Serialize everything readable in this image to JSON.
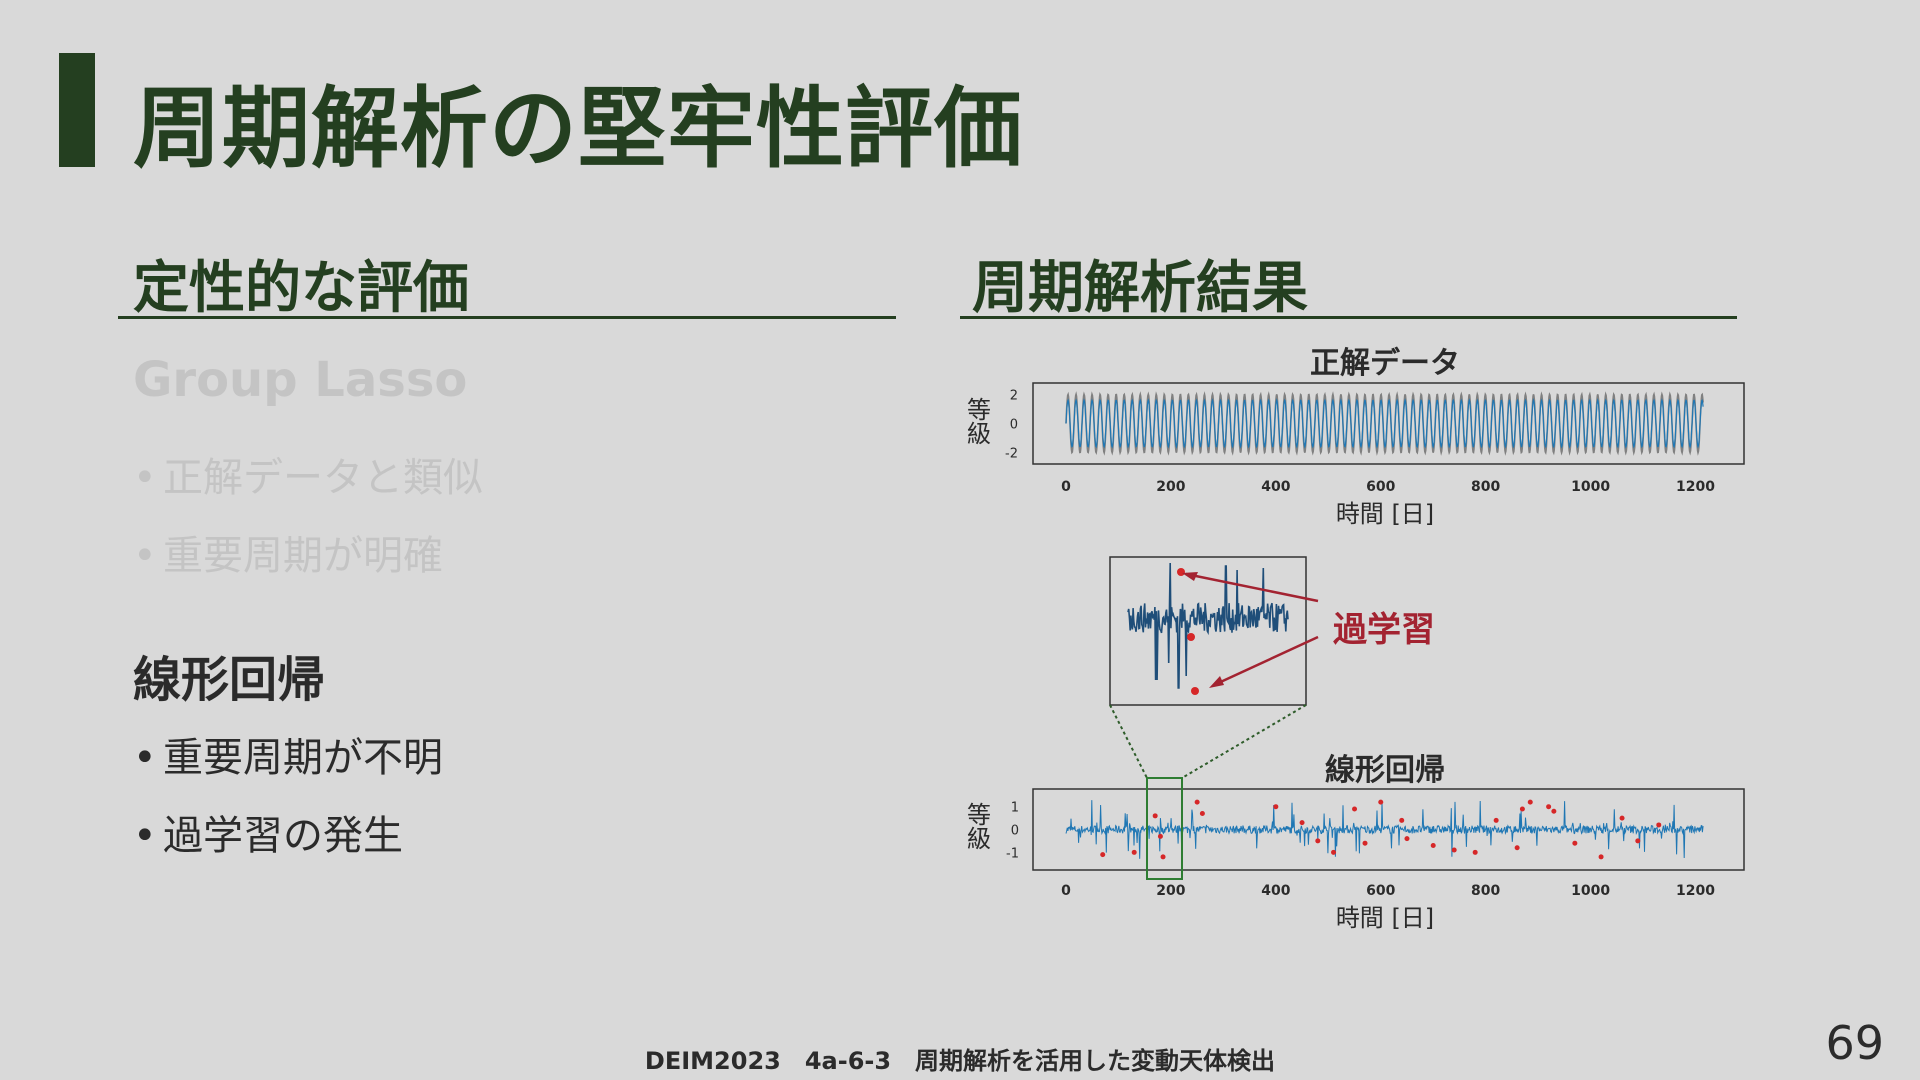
{
  "slide": {
    "title": "周期解析の堅牢性評価",
    "page_number": "69",
    "footer": "DEIM2023　4a-6-3　周期解析を活用した変動天体検出"
  },
  "left": {
    "heading": "定性的な評価",
    "groups": [
      {
        "title": "Group Lasso",
        "bullets": [
          "正解データと類似",
          "重要周期が明確"
        ],
        "faded": true
      },
      {
        "title": "線形回帰",
        "bullets": [
          "重要周期が不明",
          "過学習の発生"
        ],
        "faded": false
      }
    ]
  },
  "right": {
    "heading": "周期解析結果",
    "annotation": "過学習",
    "charts": [
      {
        "type": "line",
        "title": "正解データ",
        "ylabel": "等級",
        "xlabel": "時間 [日]",
        "x_ticks": [
          "0",
          "200",
          "400",
          "600",
          "800",
          "1000",
          "1200"
        ],
        "y_ticks": [
          "2",
          "0",
          "-2"
        ],
        "xlim": [
          0,
          1220
        ],
        "ylim": [
          -2.5,
          2.5
        ],
        "series": [
          {
            "color": "#808080",
            "amplitude": 2.0,
            "period_days": 15.3
          },
          {
            "color": "#1f77b4",
            "amplitude": 1.6,
            "period_days": 15.3
          }
        ]
      },
      {
        "type": "line",
        "title": "線形回帰",
        "ylabel": "等級",
        "xlabel": "時間 [日]",
        "x_ticks": [
          "0",
          "200",
          "400",
          "600",
          "800",
          "1000",
          "1200"
        ],
        "y_ticks": [
          "1",
          "0",
          "-1"
        ],
        "xlim": [
          0,
          1220
        ],
        "ylim": [
          -1.6,
          1.6
        ],
        "series": [
          {
            "color": "#1f77b4"
          }
        ],
        "overfit_points": {
          "color": "#d62728",
          "points": [
            [
              70,
              -1.1
            ],
            [
              130,
              -1.0
            ],
            [
              170,
              0.6
            ],
            [
              180,
              -0.3
            ],
            [
              185,
              -1.2
            ],
            [
              250,
              1.2
            ],
            [
              260,
              0.7
            ],
            [
              400,
              1.0
            ],
            [
              450,
              0.3
            ],
            [
              480,
              -0.5
            ],
            [
              510,
              -1.0
            ],
            [
              550,
              0.9
            ],
            [
              570,
              -0.6
            ],
            [
              600,
              1.2
            ],
            [
              640,
              0.4
            ],
            [
              650,
              -0.4
            ],
            [
              700,
              -0.7
            ],
            [
              740,
              -0.9
            ],
            [
              780,
              -1.0
            ],
            [
              820,
              0.4
            ],
            [
              860,
              -0.8
            ],
            [
              870,
              0.9
            ],
            [
              885,
              1.2
            ],
            [
              920,
              1.0
            ],
            [
              930,
              0.8
            ],
            [
              970,
              -0.6
            ],
            [
              1020,
              -1.2
            ],
            [
              1060,
              0.5
            ],
            [
              1090,
              -0.5
            ],
            [
              1130,
              0.2
            ]
          ]
        },
        "zoom_range": [
          150,
          215
        ]
      }
    ]
  }
}
